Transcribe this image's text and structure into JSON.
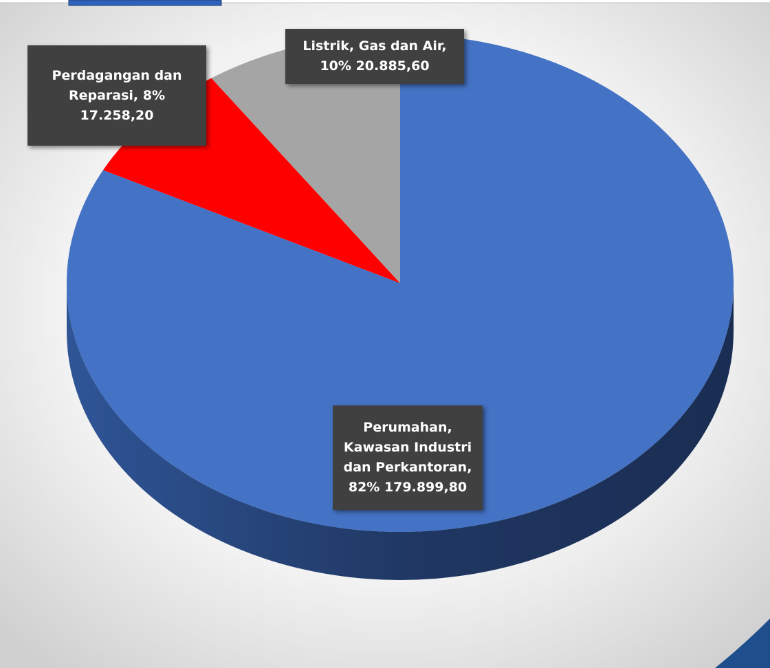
{
  "chart_data": {
    "type": "pie",
    "categories": [
      "Perumahan, Kawasan Industri dan Perkantoran",
      "Perdagangan dan Reparasi",
      "Listrik, Gas dan Air"
    ],
    "values": [
      179899.8,
      17258.2,
      20885.6
    ],
    "value_labels": [
      "179.899,80",
      "17.258,20",
      "20.885,60"
    ],
    "percents": [
      82,
      8,
      10
    ],
    "percent_labels": [
      "82%",
      "8%",
      "10%"
    ],
    "colors": [
      "#4472c4",
      "#ff0000",
      "#a5a5a5"
    ]
  }
}
